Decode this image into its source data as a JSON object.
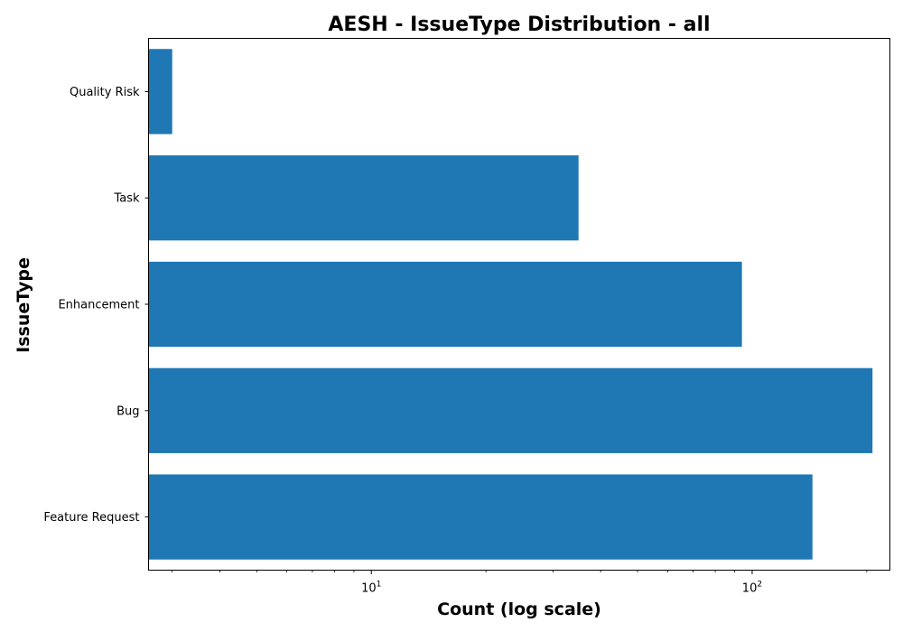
{
  "chart_data": {
    "type": "bar",
    "orientation": "horizontal",
    "title": "AESH - IssueType Distribution - all",
    "xlabel": "Count (log scale)",
    "ylabel": "IssueType",
    "xscale": "log",
    "xlim": [
      2.6,
      230
    ],
    "categories": [
      "Quality Risk",
      "Task",
      "Enhancement",
      "Bug",
      "Feature Request"
    ],
    "values": [
      3,
      35,
      94,
      207,
      144
    ],
    "major_ticks": [
      {
        "value": 10,
        "base": "10",
        "exp": "1"
      },
      {
        "value": 100,
        "base": "10",
        "exp": "2"
      }
    ],
    "minor_ticks": [
      3,
      4,
      5,
      6,
      7,
      8,
      9,
      20,
      30,
      40,
      50,
      60,
      70,
      80,
      90,
      200
    ],
    "bar_color": "#1f77b4",
    "grid": false,
    "legend": "none"
  }
}
